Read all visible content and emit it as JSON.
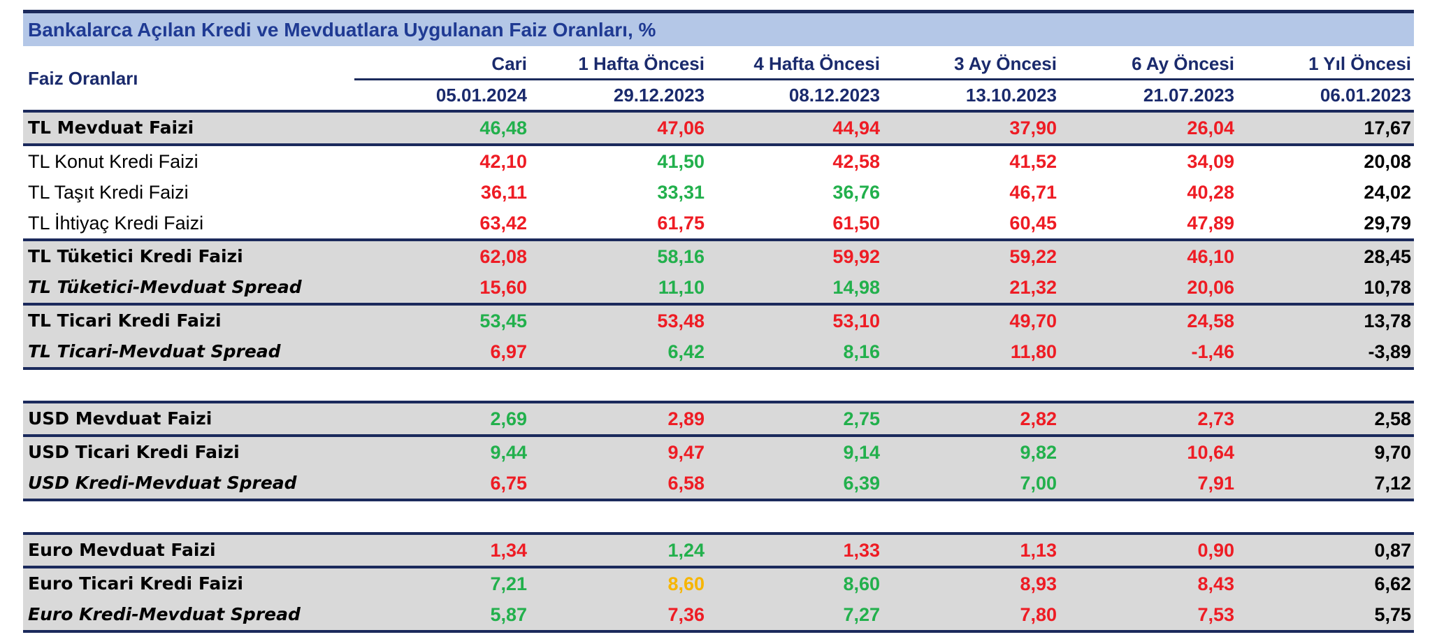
{
  "title": "Bankalarca Açılan Kredi ve Mevduatlara Uygulanan Faiz Oranları, %",
  "header": {
    "label": "Faiz Oranları",
    "columns": [
      {
        "name": "Cari",
        "date": "05.01.2024"
      },
      {
        "name": "1 Hafta Öncesi",
        "date": "29.12.2023"
      },
      {
        "name": "4 Hafta Öncesi",
        "date": "08.12.2023"
      },
      {
        "name": "3 Ay Öncesi",
        "date": "13.10.2023"
      },
      {
        "name": "6 Ay Öncesi",
        "date": "21.07.2023"
      },
      {
        "name": "1 Yıl Öncesi",
        "date": "06.01.2023"
      }
    ]
  },
  "groups": [
    [
      {
        "label": "TL Mevduat Faizi",
        "values": [
          "46,48",
          "47,06",
          "44,94",
          "37,90",
          "26,04",
          "17,67"
        ],
        "colors": [
          "#22b04c",
          "#ee1c24",
          "#ee1c24",
          "#ee1c24",
          "#ee1c24",
          "#000000"
        ]
      }
    ],
    [
      {
        "label": "TL Konut Kredi Faizi",
        "values": [
          "42,10",
          "41,50",
          "42,58",
          "41,52",
          "34,09",
          "20,08"
        ],
        "colors": [
          "#ee1c24",
          "#22b04c",
          "#ee1c24",
          "#ee1c24",
          "#ee1c24",
          "#000000"
        ]
      },
      {
        "label": "TL Taşıt Kredi Faizi",
        "values": [
          "36,11",
          "33,31",
          "36,76",
          "46,71",
          "40,28",
          "24,02"
        ],
        "colors": [
          "#ee1c24",
          "#22b04c",
          "#22b04c",
          "#ee1c24",
          "#ee1c24",
          "#000000"
        ]
      },
      {
        "label": "TL İhtiyaç Kredi Faizi",
        "values": [
          "63,42",
          "61,75",
          "61,50",
          "60,45",
          "47,89",
          "29,79"
        ],
        "colors": [
          "#ee1c24",
          "#ee1c24",
          "#ee1c24",
          "#ee1c24",
          "#ee1c24",
          "#000000"
        ]
      }
    ],
    [
      {
        "label": "TL Tüketici Kredi Faizi",
        "values": [
          "62,08",
          "58,16",
          "59,92",
          "59,22",
          "46,10",
          "28,45"
        ],
        "colors": [
          "#ee1c24",
          "#22b04c",
          "#ee1c24",
          "#ee1c24",
          "#ee1c24",
          "#000000"
        ]
      },
      {
        "label": "TL Tüketici-Mevduat Spread",
        "values": [
          "15,60",
          "11,10",
          "14,98",
          "21,32",
          "20,06",
          "10,78"
        ],
        "colors": [
          "#ee1c24",
          "#22b04c",
          "#22b04c",
          "#ee1c24",
          "#ee1c24",
          "#000000"
        ]
      }
    ],
    [
      {
        "label": "TL Ticari Kredi Faizi",
        "values": [
          "53,45",
          "53,48",
          "53,10",
          "49,70",
          "24,58",
          "13,78"
        ],
        "colors": [
          "#22b04c",
          "#ee1c24",
          "#ee1c24",
          "#ee1c24",
          "#ee1c24",
          "#000000"
        ]
      },
      {
        "label": "TL Ticari-Mevduat Spread",
        "values": [
          "6,97",
          "6,42",
          "8,16",
          "11,80",
          "-1,46",
          "-3,89"
        ],
        "colors": [
          "#ee1c24",
          "#22b04c",
          "#22b04c",
          "#ee1c24",
          "#ee1c24",
          "#000000"
        ]
      }
    ],
    [
      {
        "label": "USD Mevduat Faizi",
        "values": [
          "2,69",
          "2,89",
          "2,75",
          "2,82",
          "2,73",
          "2,58"
        ],
        "colors": [
          "#22b04c",
          "#ee1c24",
          "#22b04c",
          "#ee1c24",
          "#ee1c24",
          "#000000"
        ]
      }
    ],
    [
      {
        "label": "USD Ticari Kredi Faizi",
        "values": [
          "9,44",
          "9,47",
          "9,14",
          "9,82",
          "10,64",
          "9,70"
        ],
        "colors": [
          "#22b04c",
          "#ee1c24",
          "#22b04c",
          "#22b04c",
          "#ee1c24",
          "#000000"
        ]
      },
      {
        "label": "USD Kredi-Mevduat Spread",
        "values": [
          "6,75",
          "6,58",
          "6,39",
          "7,00",
          "7,91",
          "7,12"
        ],
        "colors": [
          "#ee1c24",
          "#ee1c24",
          "#22b04c",
          "#22b04c",
          "#ee1c24",
          "#000000"
        ]
      }
    ],
    [
      {
        "label": "Euro Mevduat Faizi",
        "values": [
          "1,34",
          "1,24",
          "1,33",
          "1,13",
          "0,90",
          "0,87"
        ],
        "colors": [
          "#ee1c24",
          "#22b04c",
          "#ee1c24",
          "#ee1c24",
          "#ee1c24",
          "#000000"
        ]
      }
    ],
    [
      {
        "label": "Euro Ticari Kredi Faizi",
        "values": [
          "7,21",
          "8,60",
          "8,60",
          "8,93",
          "8,43",
          "6,62"
        ],
        "colors": [
          "#22b04c",
          "#f7b500",
          "#22b04c",
          "#ee1c24",
          "#ee1c24",
          "#000000"
        ]
      },
      {
        "label": "Euro Kredi-Mevduat Spread",
        "values": [
          "5,87",
          "7,36",
          "7,27",
          "7,80",
          "7,53",
          "5,75"
        ],
        "colors": [
          "#22b04c",
          "#ee1c24",
          "#22b04c",
          "#ee1c24",
          "#ee1c24",
          "#000000"
        ]
      }
    ]
  ]
}
